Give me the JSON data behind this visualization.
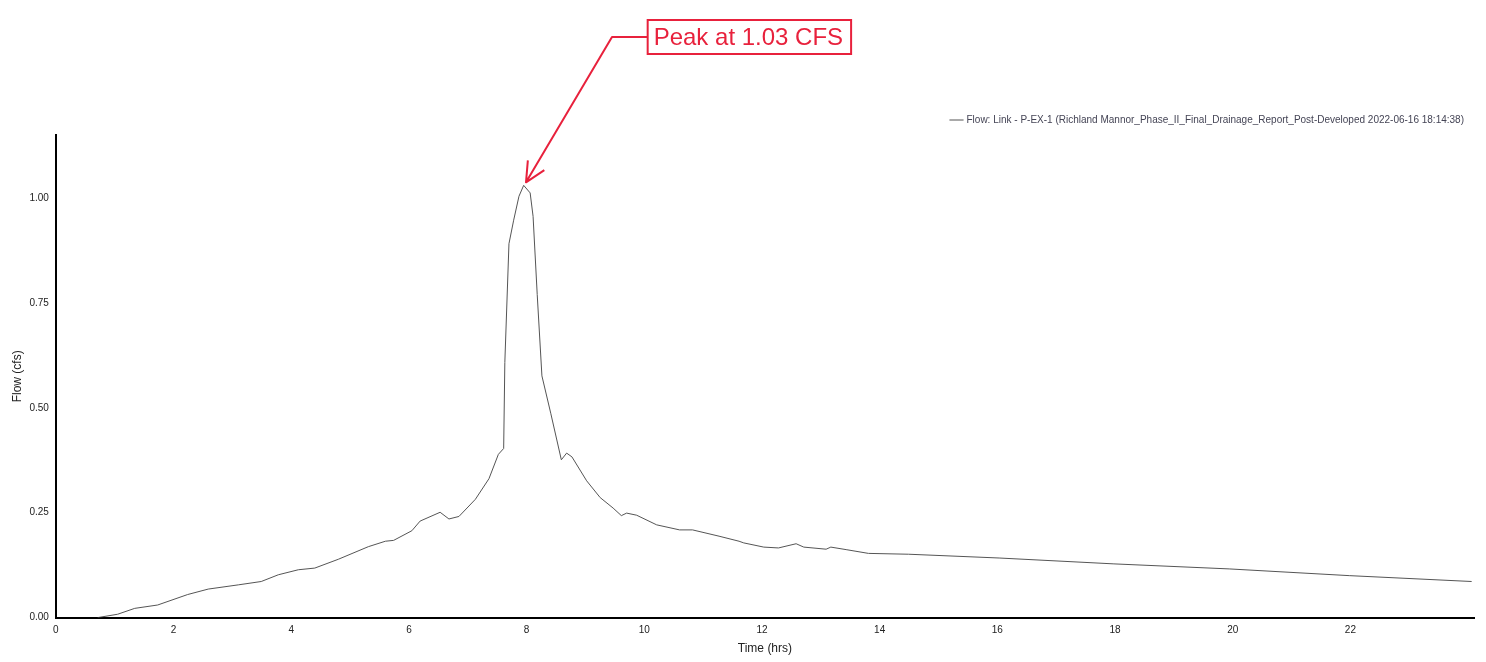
{
  "chart_data": {
    "type": "line",
    "xlabel": "Time (hrs)",
    "ylabel": "Flow (cfs)",
    "xlim": [
      0,
      24.1
    ],
    "xticks": [
      0,
      2,
      4,
      6,
      8,
      10,
      12,
      14,
      16,
      18,
      20,
      22
    ],
    "ylim": [
      0,
      1.15
    ],
    "yticks": [
      {
        "value": 0,
        "label": "0.00"
      },
      {
        "value": 0.25,
        "label": "0.25"
      },
      {
        "value": 0.5,
        "label": "0.50"
      },
      {
        "value": 0.75,
        "label": "0.75"
      },
      {
        "value": 1,
        "label": "1.00"
      }
    ],
    "grid": false,
    "legend": "top right",
    "marker": "none",
    "line_style": "solid",
    "annotations": [
      {
        "text": "Peak at 1.03 CFS",
        "x": 7.95,
        "y": 1.03
      }
    ],
    "series": [
      {
        "name": "Flow: Link - P-EX-1 (Richland Mannor_Phase_II_Final_Drainage_Report_Post-Developed 2022-06-16 18:14:38)",
        "color": "#555555",
        "x": [
          0.71,
          1.05,
          1.34,
          1.73,
          2.24,
          2.59,
          3.1,
          3.49,
          3.78,
          4.12,
          4.4,
          4.8,
          5.31,
          5.6,
          5.74,
          6.05,
          6.19,
          6.53,
          6.68,
          6.85,
          7.13,
          7.36,
          7.52,
          7.61,
          7.63,
          7.7,
          7.78,
          7.87,
          7.95,
          8.06,
          8.11,
          8.18,
          8.26,
          8.41,
          8.59,
          8.68,
          8.77,
          9.02,
          9.25,
          9.47,
          9.61,
          9.7,
          9.87,
          10.21,
          10.6,
          10.82,
          11.27,
          11.61,
          11.69,
          12.03,
          12.28,
          12.58,
          12.71,
          13.09,
          13.17,
          13.43,
          13.81,
          14.49,
          16.03,
          17.98,
          19.94,
          21.98,
          24.06
        ],
        "values": [
          0,
          0.008,
          0.022,
          0.03,
          0.055,
          0.068,
          0.078,
          0.086,
          0.102,
          0.114,
          0.118,
          0.139,
          0.169,
          0.182,
          0.184,
          0.207,
          0.23,
          0.251,
          0.235,
          0.241,
          0.282,
          0.331,
          0.389,
          0.403,
          0.608,
          0.891,
          0.947,
          1.004,
          1.03,
          1.012,
          0.956,
          0.77,
          0.576,
          0.487,
          0.376,
          0.392,
          0.383,
          0.326,
          0.286,
          0.261,
          0.243,
          0.249,
          0.244,
          0.221,
          0.209,
          0.209,
          0.194,
          0.182,
          0.178,
          0.168,
          0.166,
          0.176,
          0.168,
          0.163,
          0.168,
          0.162,
          0.153,
          0.151,
          0.142,
          0.128,
          0.116,
          0.1,
          0.086
        ]
      }
    ]
  }
}
